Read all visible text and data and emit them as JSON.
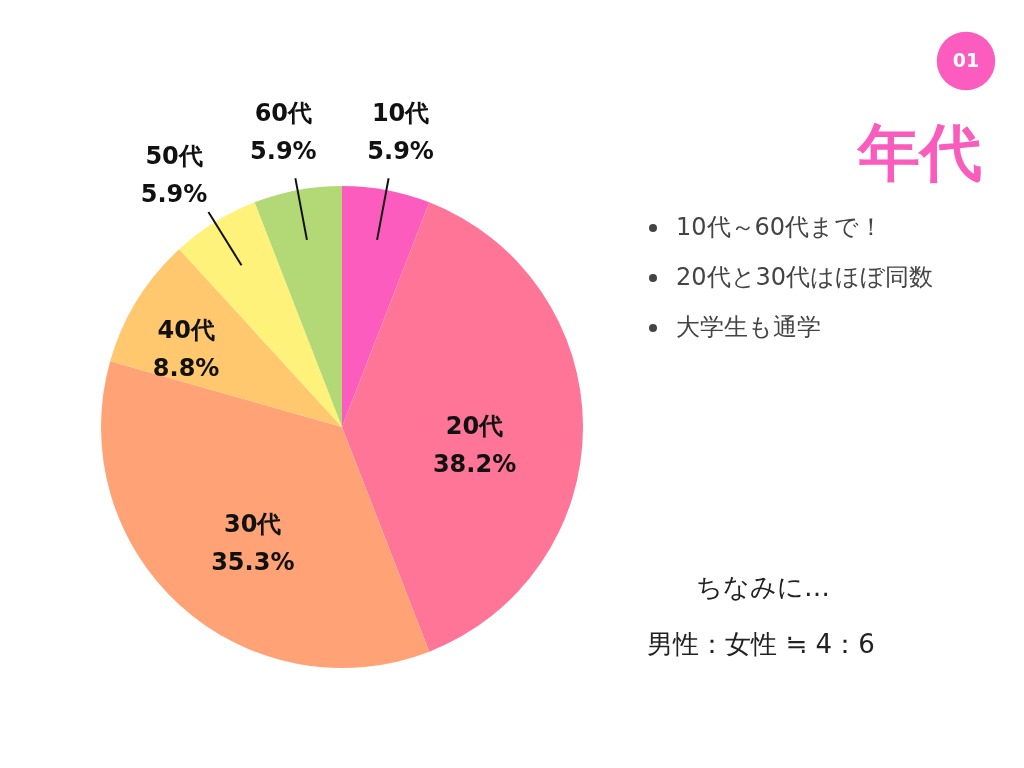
{
  "chart_data": {
    "type": "pie",
    "title": "年代",
    "categories": [
      "10代",
      "20代",
      "30代",
      "40代",
      "50代",
      "60代"
    ],
    "values": [
      5.9,
      38.2,
      35.3,
      8.8,
      5.9,
      5.9
    ],
    "colors": [
      "#fd5cbf",
      "#ff7598",
      "#ffa276",
      "#ffc76e",
      "#fff27a",
      "#b2d975"
    ],
    "value_labels": [
      "5.9%",
      "38.2%",
      "35.3%",
      "8.8%",
      "5.9%",
      "5.9%"
    ],
    "annotations": [
      "01",
      "10代～60代まで！",
      "20代と30代はほぼ同数",
      "大学生も通学",
      "ちなみに…",
      "男性：女性 ≒ 4：6"
    ]
  }
}
